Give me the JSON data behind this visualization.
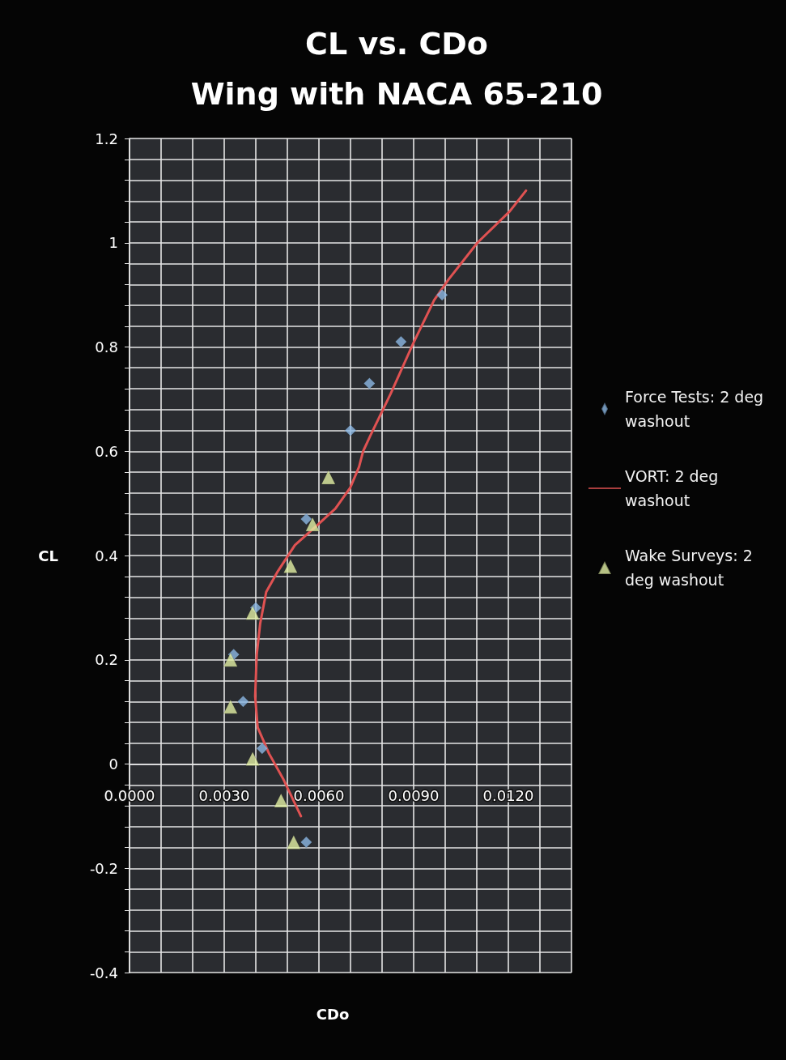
{
  "chart_data": {
    "type": "scatter",
    "title": "CL vs. CDo",
    "subtitle": "Wing with NACA 65-210",
    "xlabel": "CDo",
    "ylabel": "CL",
    "series": [
      {
        "name": "Force Tests: 2 deg washout",
        "marker": "diamond",
        "color": "#8cb8e4",
        "x": [
          0.0099,
          0.0086,
          0.0076,
          0.007,
          0.0056,
          0.004,
          0.0033,
          0.0036,
          0.0042,
          0.0056
        ],
        "values": [
          0.9,
          0.81,
          0.73,
          0.64,
          0.47,
          0.3,
          0.21,
          0.12,
          0.03,
          -0.15
        ]
      },
      {
        "name": "VORT: 2 deg washout",
        "type": "line",
        "marker": "none",
        "line_style": "solid",
        "color": "#e05252",
        "x": [
          0.01256,
          0.01204,
          0.01102,
          0.01011,
          0.00965,
          0.00901,
          0.00827,
          0.00763,
          0.0074,
          0.00727,
          0.00699,
          0.00652,
          0.00598,
          0.00524,
          0.0047,
          0.00433,
          0.00414,
          0.00403,
          0.00398,
          0.00406,
          0.00442,
          0.00488,
          0.00543
        ],
        "values": [
          1.1,
          1.06,
          1.0,
          0.93,
          0.89,
          0.81,
          0.71,
          0.63,
          0.6,
          0.57,
          0.53,
          0.49,
          0.46,
          0.42,
          0.37,
          0.33,
          0.27,
          0.21,
          0.13,
          0.07,
          0.02,
          -0.03,
          -0.1
        ]
      },
      {
        "name": "Wake Surveys: 2 deg washout",
        "marker": "triangle",
        "color": "#e2f0a4",
        "x": [
          0.0063,
          0.0058,
          0.0051,
          0.0039,
          0.0032,
          0.0032,
          0.0039,
          0.0048,
          0.0052
        ],
        "values": [
          0.55,
          0.46,
          0.38,
          0.29,
          0.2,
          0.11,
          0.01,
          -0.07,
          -0.15
        ]
      }
    ],
    "xlim": [
      0,
      0.014
    ],
    "xticks": [
      {
        "value": 0,
        "label": "0.0000"
      },
      {
        "value": 0.001,
        "label": null
      },
      {
        "value": 0.002,
        "label": null
      },
      {
        "value": 0.003,
        "label": "0.0030"
      },
      {
        "value": 0.004,
        "label": null
      },
      {
        "value": 0.005,
        "label": null
      },
      {
        "value": 0.006,
        "label": "0.0060"
      },
      {
        "value": 0.007,
        "label": null
      },
      {
        "value": 0.008,
        "label": null
      },
      {
        "value": 0.009,
        "label": "0.0090"
      },
      {
        "value": 0.01,
        "label": null
      },
      {
        "value": 0.011,
        "label": null
      },
      {
        "value": 0.012,
        "label": "0.0120"
      },
      {
        "value": 0.013,
        "label": null
      },
      {
        "value": 0.014,
        "label": null
      }
    ],
    "ylim": [
      -0.4,
      1.2
    ],
    "yticks": [
      1.2,
      {
        "value": 1.16,
        "label": null
      },
      {
        "value": 1.12,
        "label": null
      },
      {
        "value": 1.08,
        "label": null
      },
      {
        "value": 1.04,
        "label": null
      },
      1,
      {
        "value": 0.96,
        "label": null
      },
      {
        "value": 0.92,
        "label": null
      },
      {
        "value": 0.88,
        "label": null
      },
      {
        "value": 0.84,
        "label": null
      },
      0.8,
      {
        "value": 0.76,
        "label": null
      },
      {
        "value": 0.72,
        "label": null
      },
      {
        "value": 0.68,
        "label": null
      },
      {
        "value": 0.64,
        "label": null
      },
      0.6,
      {
        "value": 0.56,
        "label": null
      },
      {
        "value": 0.52,
        "label": null
      },
      {
        "value": 0.48,
        "label": null
      },
      {
        "value": 0.44,
        "label": null
      },
      0.4,
      {
        "value": 0.36,
        "label": null
      },
      {
        "value": 0.32,
        "label": null
      },
      {
        "value": 0.28,
        "label": null
      },
      {
        "value": 0.24,
        "label": null
      },
      0.2,
      {
        "value": 0.16,
        "label": null
      },
      {
        "value": 0.12,
        "label": null
      },
      {
        "value": 0.08,
        "label": null
      },
      {
        "value": 0.04,
        "label": null
      },
      0,
      {
        "value": -0.04,
        "label": null
      },
      {
        "value": -0.08,
        "label": null
      },
      {
        "value": -0.12,
        "label": null
      },
      {
        "value": -0.16,
        "label": null
      },
      -0.2,
      {
        "value": -0.24,
        "label": null
      },
      {
        "value": -0.28,
        "label": null
      },
      {
        "value": -0.32,
        "label": null
      },
      {
        "value": -0.36,
        "label": null
      },
      -0.4
    ],
    "grid": true,
    "legend": "right"
  }
}
